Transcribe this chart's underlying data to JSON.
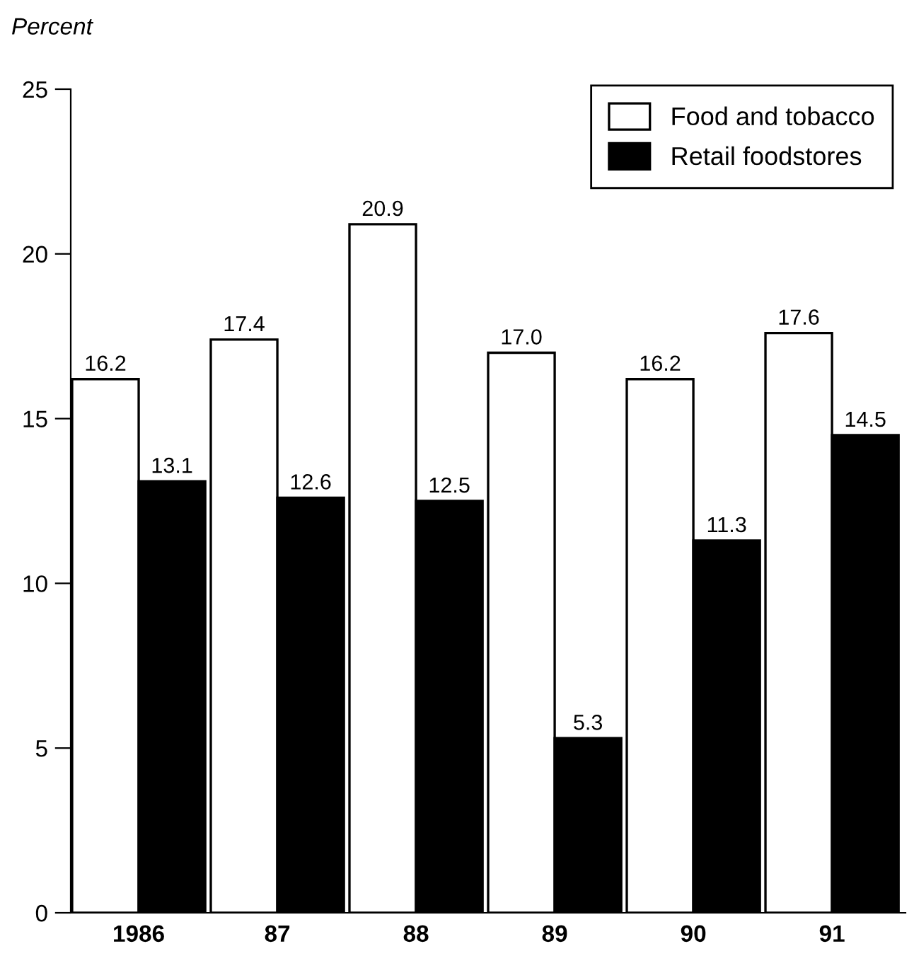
{
  "chart_data": {
    "type": "bar",
    "ylabel": "Percent",
    "categories": [
      "1986",
      "87",
      "88",
      "89",
      "90",
      "91"
    ],
    "series": [
      {
        "name": "Food and tobacco",
        "color": "#ffffff",
        "values": [
          16.2,
          17.4,
          20.9,
          17.0,
          16.2,
          17.6
        ],
        "value_labels": [
          "16.2",
          "17.4",
          "20.9",
          "17.0",
          "16.2",
          "17.6"
        ]
      },
      {
        "name": "Retail foodstores",
        "color": "#000000",
        "values": [
          13.1,
          12.6,
          12.5,
          5.3,
          11.3,
          14.5
        ],
        "value_labels": [
          "13.1",
          "12.6",
          "12.5",
          "5.3",
          "11.3",
          "14.5"
        ]
      }
    ],
    "ylim": [
      0,
      25
    ],
    "yticks": [
      0,
      5,
      10,
      15,
      20,
      25
    ],
    "grid": false,
    "legend": "top right"
  }
}
